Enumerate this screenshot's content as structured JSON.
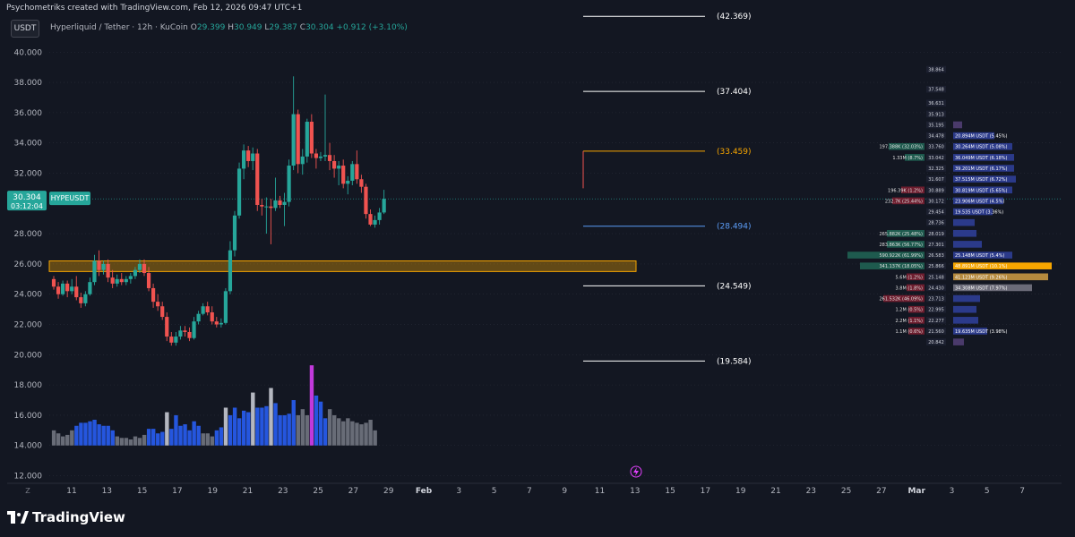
{
  "header": {
    "caption": "Psychometriks created with TradingView.com, Feb 12, 2026 09:47 UTC+1",
    "currency_badge": "USDT",
    "symbol": "Hyperliquid / Tether · 12h · KuCoin",
    "ohlc": {
      "o_label": "O",
      "o": "29.399",
      "h_label": "H",
      "h": "30.949",
      "l_label": "L",
      "l": "29.387",
      "c_label": "C",
      "c": "30.304",
      "change": "+0.912 (+3.10%)"
    }
  },
  "price_axis": {
    "ticks": [
      "40.000",
      "38.000",
      "36.000",
      "34.000",
      "32.000",
      "28.000",
      "26.000",
      "24.000",
      "22.000",
      "20.000",
      "18.000",
      "16.000",
      "14.000",
      "12.000"
    ],
    "tick_values": [
      40,
      38,
      36,
      34,
      32,
      28,
      26,
      24,
      22,
      20,
      18,
      16,
      14,
      12
    ],
    "current_price": "30.304",
    "current_price_value": 30.304,
    "countdown": "03:12:04",
    "symbol_tag": "HYPEUSDT"
  },
  "time_axis": {
    "labels": [
      "11",
      "13",
      "15",
      "17",
      "19",
      "21",
      "23",
      "25",
      "27",
      "29",
      "Feb",
      "3",
      "5",
      "7",
      "9",
      "11",
      "13",
      "15",
      "17",
      "19",
      "21",
      "23",
      "25",
      "27",
      "Mar",
      "3",
      "5",
      "7"
    ],
    "bold": [
      "Feb",
      "Mar"
    ],
    "scale_btn": "Z"
  },
  "levels": [
    {
      "label": "(42.369)",
      "value": 42.369,
      "color": "#ffffff"
    },
    {
      "label": "(37.404)",
      "value": 37.404,
      "color": "#ffffff"
    },
    {
      "label": "(33.459)",
      "value": 33.459,
      "color": "#f7a600"
    },
    {
      "label": "(28.494)",
      "value": 28.494,
      "color": "#5b9cf6"
    },
    {
      "label": "(24.549)",
      "value": 24.549,
      "color": "#ffffff"
    },
    {
      "label": "(19.584)",
      "value": 19.584,
      "color": "#ffffff"
    }
  ],
  "zone": {
    "low": 25.5,
    "high": 26.2,
    "color": "#f7a600"
  },
  "chart_data": {
    "type": "candlestick",
    "title": "Hyperliquid / Tether · 12h · KuCoin",
    "ylim": [
      11.5,
      42.5
    ],
    "x_index_start_label": "Jan 10",
    "candles": [
      {
        "o": 25.0,
        "h": 25.2,
        "l": 24.3,
        "c": 24.5
      },
      {
        "o": 24.5,
        "h": 24.8,
        "l": 23.7,
        "c": 24.0
      },
      {
        "o": 24.0,
        "h": 24.9,
        "l": 23.9,
        "c": 24.7
      },
      {
        "o": 24.7,
        "h": 24.9,
        "l": 23.8,
        "c": 24.2
      },
      {
        "o": 24.2,
        "h": 25.0,
        "l": 24.0,
        "c": 24.5
      },
      {
        "o": 24.5,
        "h": 25.2,
        "l": 23.6,
        "c": 23.8
      },
      {
        "o": 23.8,
        "h": 24.1,
        "l": 23.1,
        "c": 23.4
      },
      {
        "o": 23.4,
        "h": 24.2,
        "l": 23.2,
        "c": 24.0
      },
      {
        "o": 24.0,
        "h": 25.1,
        "l": 23.9,
        "c": 24.8
      },
      {
        "o": 24.8,
        "h": 26.6,
        "l": 24.6,
        "c": 26.2
      },
      {
        "o": 26.2,
        "h": 26.9,
        "l": 25.2,
        "c": 25.6
      },
      {
        "o": 25.6,
        "h": 26.2,
        "l": 25.3,
        "c": 26.0
      },
      {
        "o": 26.0,
        "h": 26.3,
        "l": 24.8,
        "c": 25.1
      },
      {
        "o": 25.1,
        "h": 25.6,
        "l": 24.4,
        "c": 24.7
      },
      {
        "o": 24.7,
        "h": 25.3,
        "l": 24.5,
        "c": 25.0
      },
      {
        "o": 25.0,
        "h": 25.4,
        "l": 24.6,
        "c": 24.8
      },
      {
        "o": 24.8,
        "h": 25.2,
        "l": 24.6,
        "c": 25.0
      },
      {
        "o": 25.0,
        "h": 25.4,
        "l": 24.7,
        "c": 25.2
      },
      {
        "o": 25.2,
        "h": 25.8,
        "l": 25.0,
        "c": 25.6
      },
      {
        "o": 25.6,
        "h": 26.3,
        "l": 25.4,
        "c": 26.0
      },
      {
        "o": 26.0,
        "h": 26.3,
        "l": 25.2,
        "c": 25.4
      },
      {
        "o": 25.4,
        "h": 25.8,
        "l": 24.2,
        "c": 24.4
      },
      {
        "o": 24.4,
        "h": 24.7,
        "l": 23.1,
        "c": 23.5
      },
      {
        "o": 23.5,
        "h": 24.0,
        "l": 22.9,
        "c": 23.2
      },
      {
        "o": 23.2,
        "h": 23.5,
        "l": 22.3,
        "c": 22.5
      },
      {
        "o": 22.5,
        "h": 22.8,
        "l": 20.9,
        "c": 21.2
      },
      {
        "o": 21.2,
        "h": 21.5,
        "l": 20.6,
        "c": 20.8
      },
      {
        "o": 20.8,
        "h": 21.5,
        "l": 20.6,
        "c": 21.2
      },
      {
        "o": 21.2,
        "h": 21.9,
        "l": 21.0,
        "c": 21.6
      },
      {
        "o": 21.6,
        "h": 21.9,
        "l": 21.2,
        "c": 21.5
      },
      {
        "o": 21.5,
        "h": 21.8,
        "l": 20.9,
        "c": 21.1
      },
      {
        "o": 21.1,
        "h": 22.5,
        "l": 21.0,
        "c": 22.2
      },
      {
        "o": 22.2,
        "h": 22.9,
        "l": 22.0,
        "c": 22.7
      },
      {
        "o": 22.7,
        "h": 23.4,
        "l": 22.6,
        "c": 23.2
      },
      {
        "o": 23.2,
        "h": 23.5,
        "l": 22.6,
        "c": 22.8
      },
      {
        "o": 22.8,
        "h": 23.2,
        "l": 22.0,
        "c": 22.2
      },
      {
        "o": 22.2,
        "h": 22.5,
        "l": 21.8,
        "c": 22.0
      },
      {
        "o": 22.0,
        "h": 22.4,
        "l": 21.8,
        "c": 22.1
      },
      {
        "o": 22.1,
        "h": 24.4,
        "l": 22.0,
        "c": 24.2
      },
      {
        "o": 24.2,
        "h": 27.5,
        "l": 24.0,
        "c": 26.9
      },
      {
        "o": 26.9,
        "h": 29.5,
        "l": 26.5,
        "c": 29.2
      },
      {
        "o": 29.2,
        "h": 32.7,
        "l": 29.0,
        "c": 32.3
      },
      {
        "o": 32.3,
        "h": 33.9,
        "l": 31.6,
        "c": 33.5
      },
      {
        "o": 33.5,
        "h": 33.8,
        "l": 32.4,
        "c": 32.8
      },
      {
        "o": 32.8,
        "h": 33.7,
        "l": 32.2,
        "c": 33.3
      },
      {
        "o": 33.3,
        "h": 33.6,
        "l": 29.5,
        "c": 29.9
      },
      {
        "o": 29.9,
        "h": 30.3,
        "l": 29.2,
        "c": 29.8
      },
      {
        "o": 29.8,
        "h": 30.4,
        "l": 28.0,
        "c": 29.8
      },
      {
        "o": 29.8,
        "h": 30.3,
        "l": 27.3,
        "c": 29.7
      },
      {
        "o": 29.7,
        "h": 31.7,
        "l": 29.5,
        "c": 30.2
      },
      {
        "o": 30.2,
        "h": 30.5,
        "l": 29.7,
        "c": 29.9
      },
      {
        "o": 29.9,
        "h": 30.7,
        "l": 28.5,
        "c": 30.1
      },
      {
        "o": 30.1,
        "h": 32.9,
        "l": 29.8,
        "c": 32.5
      },
      {
        "o": 32.5,
        "h": 38.4,
        "l": 32.2,
        "c": 35.9
      },
      {
        "o": 35.9,
        "h": 36.2,
        "l": 32.0,
        "c": 32.6
      },
      {
        "o": 32.6,
        "h": 33.6,
        "l": 31.9,
        "c": 33.1
      },
      {
        "o": 33.1,
        "h": 35.6,
        "l": 32.7,
        "c": 35.4
      },
      {
        "o": 35.4,
        "h": 35.9,
        "l": 33.0,
        "c": 33.3
      },
      {
        "o": 33.3,
        "h": 33.6,
        "l": 32.3,
        "c": 33.0
      },
      {
        "o": 33.0,
        "h": 33.4,
        "l": 32.8,
        "c": 33.1
      },
      {
        "o": 33.1,
        "h": 37.2,
        "l": 32.8,
        "c": 33.2
      },
      {
        "o": 33.2,
        "h": 34.0,
        "l": 32.2,
        "c": 32.8
      },
      {
        "o": 32.8,
        "h": 33.2,
        "l": 31.7,
        "c": 32.3
      },
      {
        "o": 32.3,
        "h": 32.8,
        "l": 31.2,
        "c": 32.5
      },
      {
        "o": 32.5,
        "h": 32.9,
        "l": 31.0,
        "c": 31.3
      },
      {
        "o": 31.3,
        "h": 31.8,
        "l": 30.6,
        "c": 31.5
      },
      {
        "o": 31.5,
        "h": 32.8,
        "l": 31.2,
        "c": 32.6
      },
      {
        "o": 32.6,
        "h": 33.5,
        "l": 31.3,
        "c": 31.6
      },
      {
        "o": 31.6,
        "h": 31.9,
        "l": 30.7,
        "c": 31.1
      },
      {
        "o": 31.1,
        "h": 31.3,
        "l": 29.0,
        "c": 29.3
      },
      {
        "o": 29.3,
        "h": 29.6,
        "l": 28.5,
        "c": 28.6
      },
      {
        "o": 28.6,
        "h": 29.2,
        "l": 28.4,
        "c": 28.9
      },
      {
        "o": 28.9,
        "h": 29.7,
        "l": 28.6,
        "c": 29.4
      },
      {
        "o": 29.4,
        "h": 30.9,
        "l": 29.3,
        "c": 30.3
      }
    ],
    "volume": [
      {
        "v": 15.0,
        "c": "#787b86"
      },
      {
        "v": 14.8,
        "c": "#787b86"
      },
      {
        "v": 14.6,
        "c": "#787b86"
      },
      {
        "v": 14.7,
        "c": "#787b86"
      },
      {
        "v": 15.0,
        "c": "#787b86"
      },
      {
        "v": 15.3,
        "c": "#2962ff"
      },
      {
        "v": 15.5,
        "c": "#2962ff"
      },
      {
        "v": 15.5,
        "c": "#2962ff"
      },
      {
        "v": 15.6,
        "c": "#2962ff"
      },
      {
        "v": 15.7,
        "c": "#2962ff"
      },
      {
        "v": 15.4,
        "c": "#2962ff"
      },
      {
        "v": 15.3,
        "c": "#2962ff"
      },
      {
        "v": 15.3,
        "c": "#2962ff"
      },
      {
        "v": 15.0,
        "c": "#2962ff"
      },
      {
        "v": 14.6,
        "c": "#787b86"
      },
      {
        "v": 14.5,
        "c": "#787b86"
      },
      {
        "v": 14.5,
        "c": "#787b86"
      },
      {
        "v": 14.4,
        "c": "#787b86"
      },
      {
        "v": 14.6,
        "c": "#787b86"
      },
      {
        "v": 14.5,
        "c": "#787b86"
      },
      {
        "v": 14.7,
        "c": "#787b86"
      },
      {
        "v": 15.1,
        "c": "#2962ff"
      },
      {
        "v": 15.1,
        "c": "#2962ff"
      },
      {
        "v": 14.8,
        "c": "#2962ff"
      },
      {
        "v": 14.9,
        "c": "#2962ff"
      },
      {
        "v": 16.2,
        "c": "#d1d4dc"
      },
      {
        "v": 15.1,
        "c": "#2962ff"
      },
      {
        "v": 16.0,
        "c": "#2962ff"
      },
      {
        "v": 15.3,
        "c": "#2962ff"
      },
      {
        "v": 15.4,
        "c": "#2962ff"
      },
      {
        "v": 15.0,
        "c": "#2962ff"
      },
      {
        "v": 15.6,
        "c": "#2962ff"
      },
      {
        "v": 15.3,
        "c": "#2962ff"
      },
      {
        "v": 14.8,
        "c": "#787b86"
      },
      {
        "v": 14.8,
        "c": "#787b86"
      },
      {
        "v": 14.6,
        "c": "#787b86"
      },
      {
        "v": 15.0,
        "c": "#2962ff"
      },
      {
        "v": 15.2,
        "c": "#2962ff"
      },
      {
        "v": 16.5,
        "c": "#d1d4dc"
      },
      {
        "v": 16.0,
        "c": "#2962ff"
      },
      {
        "v": 16.5,
        "c": "#2962ff"
      },
      {
        "v": 15.8,
        "c": "#2962ff"
      },
      {
        "v": 16.3,
        "c": "#2962ff"
      },
      {
        "v": 16.2,
        "c": "#2962ff"
      },
      {
        "v": 17.5,
        "c": "#d1d4dc"
      },
      {
        "v": 16.5,
        "c": "#2962ff"
      },
      {
        "v": 16.5,
        "c": "#2962ff"
      },
      {
        "v": 16.6,
        "c": "#2962ff"
      },
      {
        "v": 17.8,
        "c": "#d1d4dc"
      },
      {
        "v": 16.8,
        "c": "#2962ff"
      },
      {
        "v": 16.0,
        "c": "#2962ff"
      },
      {
        "v": 16.0,
        "c": "#2962ff"
      },
      {
        "v": 16.1,
        "c": "#2962ff"
      },
      {
        "v": 17.0,
        "c": "#2962ff"
      },
      {
        "v": 16.0,
        "c": "#787b86"
      },
      {
        "v": 16.4,
        "c": "#787b86"
      },
      {
        "v": 16.0,
        "c": "#787b86"
      },
      {
        "v": 19.3,
        "c": "#e040fb"
      },
      {
        "v": 17.3,
        "c": "#2962ff"
      },
      {
        "v": 16.9,
        "c": "#2962ff"
      },
      {
        "v": 15.8,
        "c": "#2962ff"
      },
      {
        "v": 16.4,
        "c": "#787b86"
      },
      {
        "v": 16.0,
        "c": "#787b86"
      },
      {
        "v": 15.8,
        "c": "#787b86"
      },
      {
        "v": 15.6,
        "c": "#787b86"
      },
      {
        "v": 15.8,
        "c": "#787b86"
      },
      {
        "v": 15.6,
        "c": "#787b86"
      },
      {
        "v": 15.5,
        "c": "#787b86"
      },
      {
        "v": 15.4,
        "c": "#787b86"
      },
      {
        "v": 15.5,
        "c": "#787b86"
      },
      {
        "v": 15.7,
        "c": "#787b86"
      },
      {
        "v": 15.0,
        "c": "#787b86"
      }
    ],
    "volume_baseline": 14.0
  },
  "order_book": {
    "prices": [
      "38.864",
      "37.548",
      "36.631",
      "35.913",
      "35.195",
      "34.478",
      "33.760",
      "33.042",
      "32.325",
      "31.607",
      "30.889",
      "30.172",
      "29.454",
      "28.736",
      "28.019",
      "27.301",
      "26.583",
      "25.866",
      "25.148",
      "24.430",
      "23.713",
      "22.995",
      "22.277",
      "21.560",
      "20.842"
    ],
    "price_values": [
      38.864,
      37.548,
      36.631,
      35.913,
      35.195,
      34.478,
      33.76,
      33.042,
      32.325,
      31.607,
      30.889,
      30.172,
      29.454,
      28.736,
      28.019,
      27.301,
      26.583,
      25.866,
      25.148,
      24.43,
      23.713,
      22.995,
      22.277,
      21.56,
      20.842
    ],
    "left_rows": [
      {
        "row": 6,
        "text": "197.388K (32.03%)",
        "w": 40,
        "color": "#1e5a4e"
      },
      {
        "row": 7,
        "text": "1.33M (8.7%)",
        "w": 22,
        "color": "#1e5a4e"
      },
      {
        "row": 10,
        "text": "196.39K (1.2%)",
        "w": 26,
        "color": "#6d1d2e"
      },
      {
        "row": 11,
        "text": "232.7K (25.44%)",
        "w": 36,
        "color": "#6d1d2e"
      },
      {
        "row": 14,
        "text": "265.882K (25.48%)",
        "w": 42,
        "color": "#1e5a4e"
      },
      {
        "row": 15,
        "text": "283.863K (56.77%)",
        "w": 42,
        "color": "#1e5a4e"
      },
      {
        "row": 16,
        "text": "590.922K (61.99%)",
        "w": 86,
        "color": "#1e5a4e"
      },
      {
        "row": 17,
        "text": "341.137K (18.05%)",
        "w": 72,
        "color": "#1e5a4e"
      },
      {
        "row": 18,
        "text": "5.6M (1.2%)",
        "w": 20,
        "color": "#6d1d2e"
      },
      {
        "row": 19,
        "text": "3.8M (1.8%)",
        "w": 20,
        "color": "#6d1d2e"
      },
      {
        "row": 20,
        "text": "261.532K (46.09%)",
        "w": 46,
        "color": "#6d1d2e"
      },
      {
        "row": 21,
        "text": "1.2M (0.5%)",
        "w": 18,
        "color": "#6d1d2e"
      },
      {
        "row": 22,
        "text": "2.2M (1.1%)",
        "w": 18,
        "color": "#6d1d2e"
      },
      {
        "row": 23,
        "text": "1.1M (0.6%)",
        "w": 18,
        "color": "#6d1d2e"
      }
    ],
    "right_rows": [
      {
        "row": 4,
        "text": "",
        "w": 10,
        "color": "#4a3a6b"
      },
      {
        "row": 5,
        "text": "20.894M USDT (5.45%)",
        "w": 46,
        "color": "#2b3a8a"
      },
      {
        "row": 6,
        "text": "30.264M USDT (5.08%)",
        "w": 66,
        "color": "#2b3a8a"
      },
      {
        "row": 7,
        "text": "36.049M USDT (6.18%)",
        "w": 68,
        "color": "#2b3a8a"
      },
      {
        "row": 8,
        "text": "39.201M USDT (6.17%)",
        "w": 68,
        "color": "#2b3a8a"
      },
      {
        "row": 9,
        "text": "37.515M USDT (6.72%)",
        "w": 70,
        "color": "#2b3a8a"
      },
      {
        "row": 10,
        "text": "30.819M USDT (5.65%)",
        "w": 66,
        "color": "#2b3a8a"
      },
      {
        "row": 11,
        "text": "23.906M USDT (4.5%)",
        "w": 56,
        "color": "#2b3a8a"
      },
      {
        "row": 12,
        "text": "19.535 USDT (3.36%)",
        "w": 44,
        "color": "#2b3a8a"
      },
      {
        "row": 13,
        "text": "",
        "w": 24,
        "color": "#2b3a8a"
      },
      {
        "row": 14,
        "text": "",
        "w": 26,
        "color": "#2b3a8a"
      },
      {
        "row": 15,
        "text": "",
        "w": 32,
        "color": "#2b3a8a"
      },
      {
        "row": 16,
        "text": "25.148M USDT (5.4%)",
        "w": 66,
        "color": "#2b3a8a"
      },
      {
        "row": 17,
        "text": "48.891M USDT (10.1%)",
        "w": 110,
        "color": "#f7a600"
      },
      {
        "row": 18,
        "text": "41.123M USDT (9.26%)",
        "w": 106,
        "color": "#b58a3e"
      },
      {
        "row": 19,
        "text": "34.308M USDT (7.97%)",
        "w": 88,
        "color": "#6b6b78"
      },
      {
        "row": 20,
        "text": "",
        "w": 30,
        "color": "#2b3a8a"
      },
      {
        "row": 21,
        "text": "",
        "w": 26,
        "color": "#2b3a8a"
      },
      {
        "row": 22,
        "text": "",
        "w": 28,
        "color": "#2b3a8a"
      },
      {
        "row": 23,
        "text": "19.635M USDT (3.98%)",
        "w": 38,
        "color": "#2b3a8a"
      },
      {
        "row": 24,
        "text": "",
        "w": 12,
        "color": "#4a3a6b"
      }
    ]
  },
  "brand": {
    "name": "TradingView"
  },
  "colors": {
    "up": "#26a69a",
    "down": "#f05350",
    "bg": "#131722",
    "text": "#b2b5be",
    "grid": "#2a2e39"
  }
}
